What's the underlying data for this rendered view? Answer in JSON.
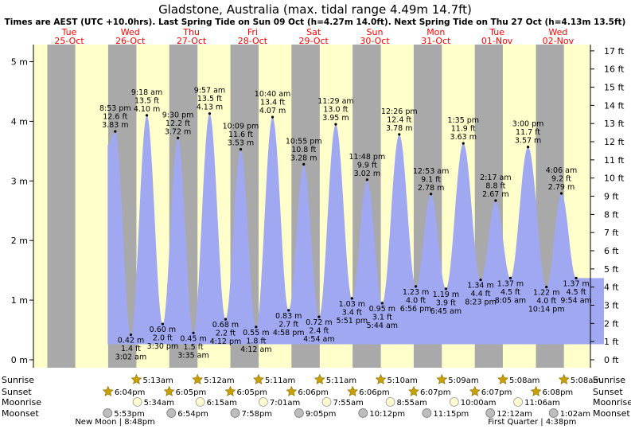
{
  "chart_data": {
    "type": "area",
    "title": "Gladstone, Australia (max. tidal range 4.49m 14.7ft)",
    "subtitle": "Times are AEST (UTC +10.0hrs). Last Spring Tide on Sun 09 Oct (h=4.27m 14.0ft). Next Spring Tide on Thu 27 Oct (h=4.13m 13.5ft)",
    "colors": {
      "night": "#a9a9a9",
      "day": "#ffffcc",
      "water": "#9fa8f0",
      "title": "#000000",
      "day_label": "#ff0000",
      "sun_icon": "#c8a000",
      "moon_icon": "#fffbd0",
      "moon_set_icon": "#bdbdbd"
    },
    "y_axis_m": {
      "min": -0.15,
      "max": 5.2,
      "ticks": [
        {
          "v": 0,
          "label": "0 m"
        },
        {
          "v": 1,
          "label": "1 m"
        },
        {
          "v": 2,
          "label": "2 m"
        },
        {
          "v": 3,
          "label": "3 m"
        },
        {
          "v": 4,
          "label": "4 m"
        },
        {
          "v": 5,
          "label": "5 m"
        }
      ]
    },
    "y_axis_ft": {
      "ticks": [
        {
          "v": 0,
          "label": "0 ft"
        },
        {
          "v": 1,
          "label": "1 ft"
        },
        {
          "v": 2,
          "label": "2 ft"
        },
        {
          "v": 3,
          "label": "3 ft"
        },
        {
          "v": 4,
          "label": "4 ft"
        },
        {
          "v": 5,
          "label": "5 ft"
        },
        {
          "v": 6,
          "label": "6 ft"
        },
        {
          "v": 7,
          "label": "7 ft"
        },
        {
          "v": 8,
          "label": "8 ft"
        },
        {
          "v": 9,
          "label": "9 ft"
        },
        {
          "v": 10,
          "label": "10 ft"
        },
        {
          "v": 11,
          "label": "11 ft"
        },
        {
          "v": 12,
          "label": "12 ft"
        },
        {
          "v": 13,
          "label": "13 ft"
        },
        {
          "v": 14,
          "label": "14 ft"
        },
        {
          "v": 15,
          "label": "15 ft"
        },
        {
          "v": 16,
          "label": "16 ft"
        },
        {
          "v": 17,
          "label": "17 ft"
        }
      ]
    },
    "x_range_hours": [
      0,
      216
    ],
    "days": [
      {
        "dow": "Tue",
        "date": "25-Oct",
        "t": 0
      },
      {
        "dow": "Wed",
        "date": "26-Oct",
        "t": 24
      },
      {
        "dow": "Thu",
        "date": "27-Oct",
        "t": 48
      },
      {
        "dow": "Fri",
        "date": "28-Oct",
        "t": 72
      },
      {
        "dow": "Sat",
        "date": "29-Oct",
        "t": 96
      },
      {
        "dow": "Sun",
        "date": "30-Oct",
        "t": 120
      },
      {
        "dow": "Mon",
        "date": "31-Oct",
        "t": 144
      },
      {
        "dow": "Tue",
        "date": "01-Nov",
        "t": 168
      },
      {
        "dow": "Wed",
        "date": "02-Nov",
        "t": 192
      }
    ],
    "night_periods": [
      [
        -5.8,
        5.2
      ],
      [
        18.1,
        29.2
      ],
      [
        42.1,
        53.2
      ],
      [
        66.1,
        77.2
      ],
      [
        90.1,
        101.2
      ],
      [
        114.1,
        125.2
      ],
      [
        138.1,
        149.15
      ],
      [
        162.1,
        173.1
      ],
      [
        186.1,
        197.1
      ],
      [
        210.1,
        221
      ]
    ],
    "tide_start": {
      "t": 17.9,
      "h": 3.6
    },
    "tide_end": {
      "t": 212.8,
      "h": 1.37
    },
    "tides": [
      {
        "t": 20.88,
        "h": 3.83,
        "type": "high",
        "time": "8:53 pm",
        "ft": "12.6 ft",
        "m": "3.83 m"
      },
      {
        "t": 27.03,
        "h": 0.42,
        "type": "low",
        "time": "3:02 am",
        "ft": "1.4 ft",
        "m": "0.42 m"
      },
      {
        "t": 33.3,
        "h": 4.1,
        "type": "high",
        "time": "9:18 am",
        "ft": "13.5 ft",
        "m": "4.10 m"
      },
      {
        "t": 39.5,
        "h": 0.6,
        "type": "low",
        "time": "3:30 pm",
        "ft": "2.0 ft",
        "m": "0.60 m"
      },
      {
        "t": 45.5,
        "h": 3.72,
        "type": "high",
        "time": "9:30 pm",
        "ft": "12.2 ft",
        "m": "3.72 m"
      },
      {
        "t": 51.58,
        "h": 0.45,
        "type": "low",
        "time": "3:35 am",
        "ft": "1.5 ft",
        "m": "0.45 m"
      },
      {
        "t": 57.95,
        "h": 4.13,
        "type": "high",
        "time": "9:57 am",
        "ft": "13.5 ft",
        "m": "4.13 m"
      },
      {
        "t": 64.2,
        "h": 0.68,
        "type": "low",
        "time": "4:12 pm",
        "ft": "2.2 ft",
        "m": "0.68 m"
      },
      {
        "t": 70.15,
        "h": 3.53,
        "type": "high",
        "time": "10:09 pm",
        "ft": "11.6 ft",
        "m": "3.53 m"
      },
      {
        "t": 76.2,
        "h": 0.55,
        "type": "low",
        "time": "4:12 am",
        "ft": "1.8 ft",
        "m": "0.55 m"
      },
      {
        "t": 82.67,
        "h": 4.07,
        "type": "high",
        "time": "10:40 am",
        "ft": "13.4 ft",
        "m": "4.07 m"
      },
      {
        "t": 88.97,
        "h": 0.83,
        "type": "low",
        "time": "4:58 pm",
        "ft": "2.7 ft",
        "m": "0.83 m"
      },
      {
        "t": 94.92,
        "h": 3.28,
        "type": "high",
        "time": "10:55 pm",
        "ft": "10.8 ft",
        "m": "3.28 m"
      },
      {
        "t": 100.9,
        "h": 0.72,
        "type": "low",
        "time": "4:54 am",
        "ft": "2.4 ft",
        "m": "0.72 m"
      },
      {
        "t": 107.48,
        "h": 3.95,
        "type": "high",
        "time": "11:29 am",
        "ft": "13.0 ft",
        "m": "3.95 m"
      },
      {
        "t": 113.85,
        "h": 1.03,
        "type": "low",
        "time": "5:51 pm",
        "ft": "3.4 ft",
        "m": "1.03 m"
      },
      {
        "t": 119.8,
        "h": 3.02,
        "type": "high",
        "time": "11:48 pm",
        "ft": "9.9 ft",
        "m": "3.02 m"
      },
      {
        "t": 125.73,
        "h": 0.95,
        "type": "low",
        "time": "5:44 am",
        "ft": "3.1 ft",
        "m": "0.95 m"
      },
      {
        "t": 132.43,
        "h": 3.78,
        "type": "high",
        "time": "12:26 pm",
        "ft": "12.4 ft",
        "m": "3.78 m"
      },
      {
        "t": 138.93,
        "h": 1.23,
        "type": "low",
        "time": "6:56 pm",
        "ft": "4.0 ft",
        "m": "1.23 m"
      },
      {
        "t": 144.88,
        "h": 2.78,
        "type": "high",
        "time": "12:53 am",
        "ft": "9.1 ft",
        "m": "2.78 m"
      },
      {
        "t": 150.75,
        "h": 1.19,
        "type": "low",
        "time": "6:45 am",
        "ft": "3.9 ft",
        "m": "1.19 m"
      },
      {
        "t": 157.58,
        "h": 3.63,
        "type": "high",
        "time": "1:35 pm",
        "ft": "11.9 ft",
        "m": "3.63 m"
      },
      {
        "t": 164.38,
        "h": 1.34,
        "type": "low",
        "time": "8:23 pm",
        "ft": "4.4 ft",
        "m": "1.34 m"
      },
      {
        "t": 170.28,
        "h": 2.67,
        "type": "high",
        "time": "2:17 am",
        "ft": "8.8 ft",
        "m": "2.67 m"
      },
      {
        "t": 176.08,
        "h": 1.37,
        "type": "low",
        "time": "8:05 am",
        "ft": "4.5 ft",
        "m": "1.37 m"
      },
      {
        "t": 183.0,
        "h": 3.57,
        "type": "high",
        "time": "3:00 pm",
        "ft": "11.7 ft",
        "m": "3.57 m"
      },
      {
        "t": 190.23,
        "h": 1.22,
        "type": "low",
        "time": "10:14 pm",
        "ft": "4.0 ft",
        "m": "1.22 m"
      },
      {
        "t": 196.1,
        "h": 2.79,
        "type": "high",
        "time": "4:06 am",
        "ft": "9.2 ft",
        "m": "2.79 m"
      },
      {
        "t": 201.9,
        "h": 1.37,
        "type": "low",
        "time": "9:54 am",
        "ft": "4.5 ft",
        "m": "1.37 m"
      }
    ],
    "row_labels": {
      "sunrise": "Sunrise",
      "sunset": "Sunset",
      "moonrise": "Moonrise",
      "moonset": "Moonset"
    },
    "sunrise": [
      {
        "t": 29.2,
        "label": "5:13am"
      },
      {
        "t": 53.2,
        "label": "5:12am"
      },
      {
        "t": 77.18,
        "label": "5:11am"
      },
      {
        "t": 101.18,
        "label": "5:11am"
      },
      {
        "t": 125.17,
        "label": "5:10am"
      },
      {
        "t": 149.15,
        "label": "5:09am"
      },
      {
        "t": 173.13,
        "label": "5:08am"
      },
      {
        "t": 197.13,
        "label": "5:08am"
      }
    ],
    "sunset": [
      {
        "t": 18.07,
        "label": "6:04pm"
      },
      {
        "t": 42.08,
        "label": "6:05pm"
      },
      {
        "t": 66.08,
        "label": "6:05pm"
      },
      {
        "t": 90.1,
        "label": "6:06pm"
      },
      {
        "t": 114.1,
        "label": "6:06pm"
      },
      {
        "t": 138.12,
        "label": "6:07pm"
      },
      {
        "t": 162.12,
        "label": "6:07pm"
      },
      {
        "t": 186.13,
        "label": "6:08pm"
      }
    ],
    "moonrise": [
      {
        "t": 29.57,
        "label": "5:34am"
      },
      {
        "t": 54.25,
        "label": "6:15am"
      },
      {
        "t": 79.02,
        "label": "7:01am"
      },
      {
        "t": 103.92,
        "label": "7:55am"
      },
      {
        "t": 128.92,
        "label": "8:55am"
      },
      {
        "t": 154.0,
        "label": "10:00am"
      },
      {
        "t": 179.1,
        "label": "11:06am"
      }
    ],
    "moonset": [
      {
        "t": 17.88,
        "label": "5:53pm"
      },
      {
        "t": 42.9,
        "label": "6:54pm"
      },
      {
        "t": 67.97,
        "label": "7:58pm"
      },
      {
        "t": 93.08,
        "label": "9:05pm"
      },
      {
        "t": 118.2,
        "label": "10:12pm"
      },
      {
        "t": 143.25,
        "label": "11:15pm"
      },
      {
        "t": 168.2,
        "label": "12:12am"
      },
      {
        "t": 193.03,
        "label": "1:02am"
      }
    ],
    "moon_phases": [
      {
        "t": 20.8,
        "label": "New Moon | 8:48pm"
      },
      {
        "t": 184.63,
        "label": "First Quarter | 4:38pm"
      }
    ]
  }
}
